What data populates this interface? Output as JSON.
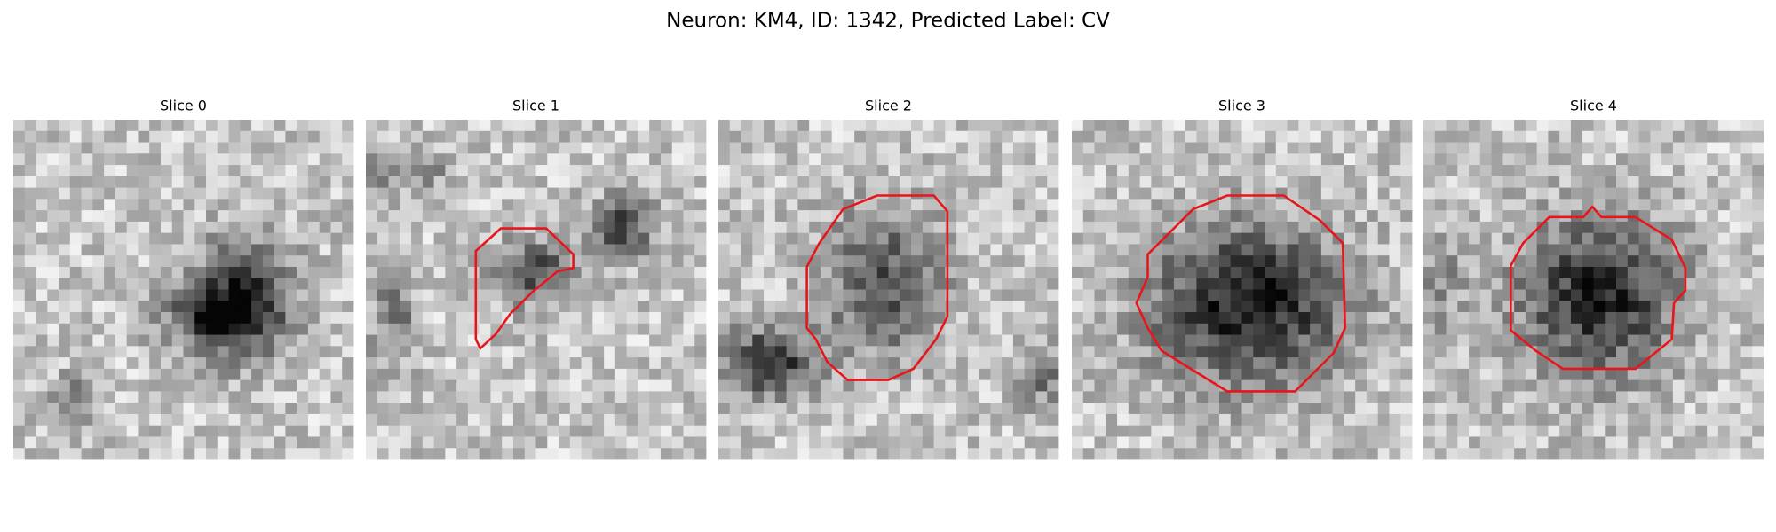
{
  "title": "Neuron: KM4, ID: 1342, Predicted Label: CV",
  "panels": [
    {
      "title": "Slice 0"
    },
    {
      "title": "Slice 1"
    },
    {
      "title": "Slice 2"
    },
    {
      "title": "Slice 3"
    },
    {
      "title": "Slice 4"
    }
  ]
}
